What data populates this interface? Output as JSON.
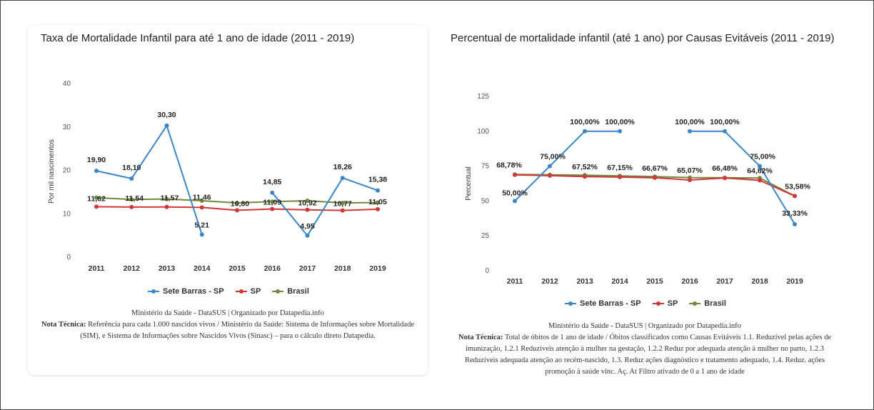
{
  "chart_data": [
    {
      "type": "line",
      "title": "Taxa de Mortalidade Infantil para até 1 ano de idade (2011 - 2019)",
      "ylabel": "Por mil nascimentos",
      "xlabel": "",
      "ylim": [
        0,
        40
      ],
      "yticks": [
        0,
        10,
        20,
        30,
        40
      ],
      "categories": [
        "2011",
        "2012",
        "2013",
        "2014",
        "2015",
        "2016",
        "2017",
        "2018",
        "2019"
      ],
      "grid": false,
      "legend": "bottom",
      "series": [
        {
          "name": "Sete Barras - SP",
          "color": "#3a86c8",
          "values": [
            19.9,
            18.1,
            30.3,
            5.21,
            null,
            14.85,
            4.95,
            18.26,
            15.38
          ],
          "labels": [
            "19,90",
            "18,10",
            "30,30",
            "5,21",
            null,
            "14,85",
            "4,95",
            "18,26",
            "15,38"
          ]
        },
        {
          "name": "SP",
          "color": "#d03838",
          "values": [
            11.62,
            11.54,
            11.57,
            11.46,
            10.8,
            11.09,
            10.92,
            10.77,
            11.05
          ],
          "labels": [
            "11,62",
            "11,54",
            "11,57",
            "11,46",
            "10,80",
            "11,09",
            "10,92",
            "10,77",
            "11,05"
          ]
        },
        {
          "name": "Brasil",
          "color": "#6f8a3c",
          "values": [
            13.7,
            13.3,
            13.4,
            13.0,
            12.5,
            12.8,
            13.0,
            12.5,
            12.6
          ],
          "labels": [
            null,
            null,
            null,
            null,
            null,
            null,
            null,
            null,
            null
          ]
        }
      ]
    },
    {
      "type": "line",
      "title": "Percentual de mortalidade infantil (até 1 ano) por Causas Evitáveis (2011 - 2019)",
      "ylabel": "Percentual",
      "xlabel": "",
      "ylim": [
        0,
        125
      ],
      "yticks": [
        0,
        25,
        50,
        75,
        100,
        125
      ],
      "categories": [
        "2011",
        "2012",
        "2013",
        "2014",
        "2015",
        "2016",
        "2017",
        "2018",
        "2019"
      ],
      "grid": false,
      "legend": "bottom",
      "series": [
        {
          "name": "Sete Barras - SP",
          "color": "#3a86c8",
          "values": [
            50.0,
            75.0,
            100.0,
            100.0,
            null,
            100.0,
            100.0,
            75.0,
            33.33
          ],
          "labels": [
            "50,00%",
            "75,00%",
            "100,00%",
            "100,00%",
            null,
            "100,00%",
            "100,00%",
            "75,00%",
            "33,33%"
          ]
        },
        {
          "name": "SP",
          "color": "#d03838",
          "values": [
            68.78,
            68.2,
            67.52,
            67.15,
            66.67,
            65.07,
            66.48,
            64.82,
            53.58
          ],
          "labels": [
            "68,78%",
            null,
            "67,52%",
            "67,15%",
            "66,67%",
            "65,07%",
            "66,48%",
            "64,82%",
            "53,58%"
          ]
        },
        {
          "name": "Brasil",
          "color": "#6f8a3c",
          "values": [
            69.0,
            68.8,
            68.5,
            68.0,
            67.5,
            66.8,
            66.7,
            66.5,
            53.58
          ],
          "labels": [
            null,
            null,
            null,
            null,
            null,
            null,
            null,
            null,
            null
          ]
        }
      ]
    }
  ],
  "sources": [
    {
      "line": "Ministério da Saúde - DataSUS | Organizado por Datapedia.info",
      "note_label": "Nota Técnica:",
      "note_text": "Referência para cada 1.000 nascidos vivos / Ministério da Saúde: Sistema de Informações sobre Mortalidade (SIM), e Sistema de Informações sobre Nascidos Vivos (Sinasc) – para o cálculo direto Datapedia."
    },
    {
      "line": "Ministério da Saúde - DataSUS | Organizado por Datapedia.info",
      "note_label": "Nota Técnica:",
      "note_text": "Total de óbitos de 1 ano de idade / Óbitos classificados como Causas Evitáveis 1.1. Reduzível pelas ações de imunização, 1.2.1 Reduzíveis atenção à mulher na gestação, 1.2.2 Reduz por adequada atenção à mulher no parto, 1.2.3 Reduzíveis adequada atenção ao recém-nascido, 1.3. Reduz ações diagnóstico e tratamento adequado, 1.4. Reduz. ações promoção à saúde vinc. Aç. At Filtro ativado de 0 a 1 ano de idade"
    }
  ]
}
